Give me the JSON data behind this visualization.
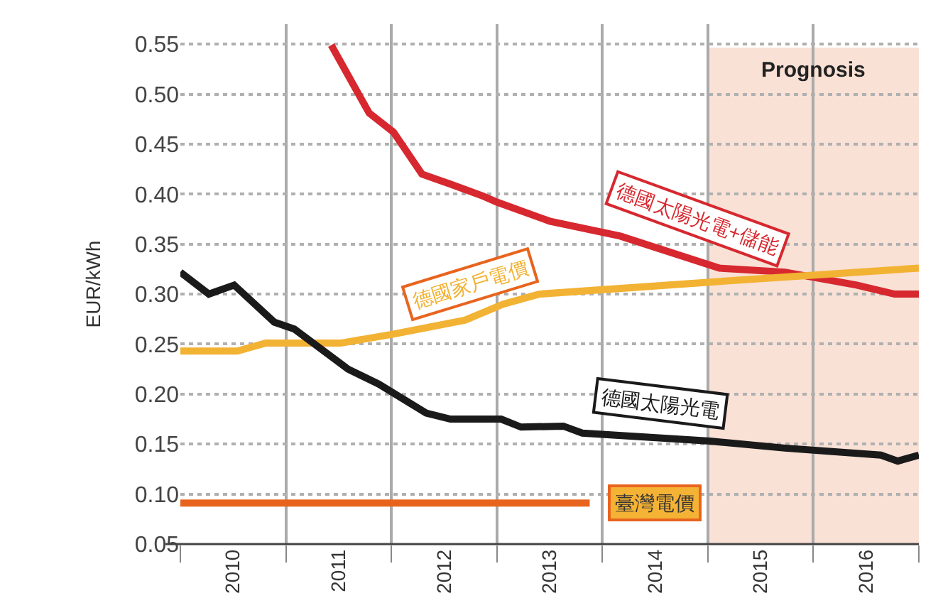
{
  "chart_data": {
    "type": "line",
    "ylabel": "EUR/kWh",
    "xlim": [
      2010,
      2017
    ],
    "xticks": [
      {
        "value": 2010,
        "label": null
      },
      {
        "value": 2010.5,
        "label": "2010"
      },
      {
        "value": 2011,
        "label": null
      },
      {
        "value": 2011.5,
        "label": "2011"
      },
      {
        "value": 2012,
        "label": null
      },
      {
        "value": 2012.5,
        "label": "2012"
      },
      {
        "value": 2013,
        "label": null
      },
      {
        "value": 2013.5,
        "label": "2013"
      },
      {
        "value": 2014,
        "label": null
      },
      {
        "value": 2014.5,
        "label": "2014"
      },
      {
        "value": 2015,
        "label": null
      },
      {
        "value": 2015.5,
        "label": "2015"
      },
      {
        "value": 2016,
        "label": null
      },
      {
        "value": 2016.5,
        "label": "2016"
      },
      {
        "value": 2017,
        "label": null
      }
    ],
    "ylim": [
      0.05,
      0.57
    ],
    "yticks": [
      0.05,
      {
        "value": 0.1,
        "label": "0.10"
      },
      0.15,
      {
        "value": 0.2,
        "label": "0.20"
      },
      0.25,
      {
        "value": 0.3,
        "label": "0.30"
      },
      0.35,
      {
        "value": 0.4,
        "label": "0.40"
      },
      0.45,
      {
        "value": 0.5,
        "label": "0.50"
      },
      0.55
    ],
    "grid": true,
    "legend": false,
    "marker": "none",
    "line_style": "solid",
    "bands": [
      {
        "axis": "x",
        "from": 2015,
        "to": 2017,
        "label": "Prognosis",
        "color": "#f9e1d6"
      }
    ],
    "series": [
      {
        "name": "德國太陽光電+儲能",
        "color": "#d7282f",
        "x": [
          2011.43,
          2011.79,
          2012.02,
          2012.29,
          2012.56,
          2012.87,
          2013.0,
          2013.5,
          2014.17,
          2015.11,
          2015.73,
          2016.41,
          2016.77,
          2017
        ],
        "values": [
          0.549,
          0.481,
          0.462,
          0.42,
          0.41,
          0.398,
          0.392,
          0.373,
          0.358,
          0.326,
          0.322,
          0.309,
          0.3,
          0.3
        ]
      },
      {
        "name": "德國家戶電價",
        "color": "#f2b233",
        "x": [
          2010,
          2010.54,
          2010.81,
          2011.52,
          2012.02,
          2012.7,
          2013.06,
          2013.4,
          2015.02,
          2017
        ],
        "values": [
          0.243,
          0.243,
          0.251,
          0.251,
          0.26,
          0.274,
          0.29,
          0.3,
          0.312,
          0.326
        ]
      },
      {
        "name": "德國太陽光電",
        "color": "#1a1a1a",
        "x": [
          2010,
          2010.27,
          2010.51,
          2010.89,
          2011.08,
          2011.59,
          2011.88,
          2012.33,
          2012.56,
          2013.04,
          2013.23,
          2013.63,
          2013.81,
          2015.02,
          2015.73,
          2016.64,
          2016.8,
          2017
        ],
        "values": [
          0.322,
          0.3,
          0.309,
          0.272,
          0.265,
          0.225,
          0.21,
          0.181,
          0.175,
          0.175,
          0.167,
          0.168,
          0.161,
          0.153,
          0.146,
          0.139,
          0.133,
          0.139
        ]
      },
      {
        "name": "臺灣電價",
        "color": "#e8641e",
        "x": [
          2010,
          2013.88
        ],
        "values": [
          0.091,
          0.091
        ]
      }
    ]
  }
}
